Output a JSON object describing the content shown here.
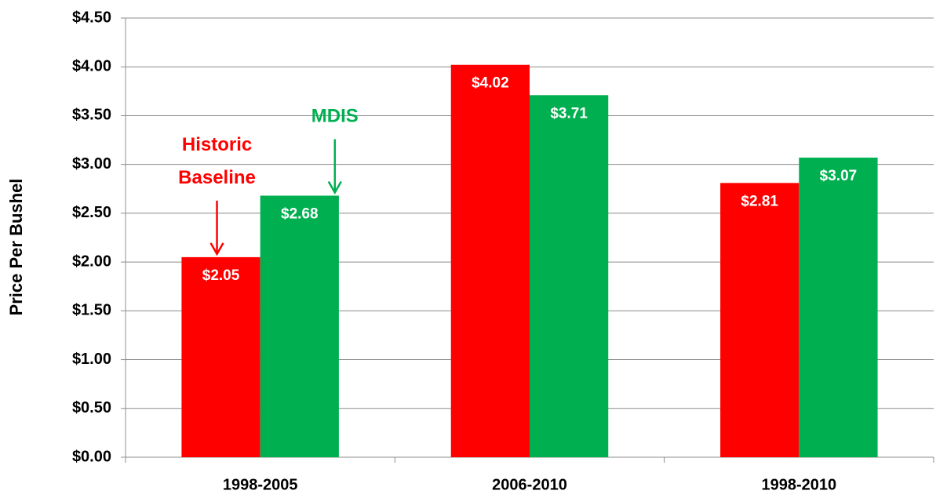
{
  "chart_data": {
    "type": "bar",
    "y_label": "Price Per Bushel",
    "categories": [
      "1998-2005",
      "2006-2010",
      "1998-2010"
    ],
    "series": [
      {
        "name": "Historic Baseline",
        "color": "#ff0000",
        "values": [
          2.05,
          4.02,
          2.81
        ],
        "value_labels": [
          "$2.05",
          "$4.02",
          "$2.81"
        ]
      },
      {
        "name": "MDIS",
        "color": "#00b050",
        "values": [
          2.68,
          3.71,
          3.07
        ],
        "value_labels": [
          "$2.68",
          "$3.71",
          "$3.07"
        ]
      }
    ],
    "ylim": [
      0,
      4.5
    ],
    "yticks": [
      {
        "value": 0,
        "label": "$0.00"
      },
      {
        "value": 0.5,
        "label": "$0.50"
      },
      {
        "value": 1,
        "label": "$1.00"
      },
      {
        "value": 1.5,
        "label": "$1.50"
      },
      {
        "value": 2,
        "label": "$2.00"
      },
      {
        "value": 2.5,
        "label": "$2.50"
      },
      {
        "value": 3,
        "label": "$3.00"
      },
      {
        "value": 3.5,
        "label": "$3.50"
      },
      {
        "value": 4,
        "label": "$4.00"
      },
      {
        "value": 4.5,
        "label": "$4.50"
      }
    ],
    "grid": true
  }
}
